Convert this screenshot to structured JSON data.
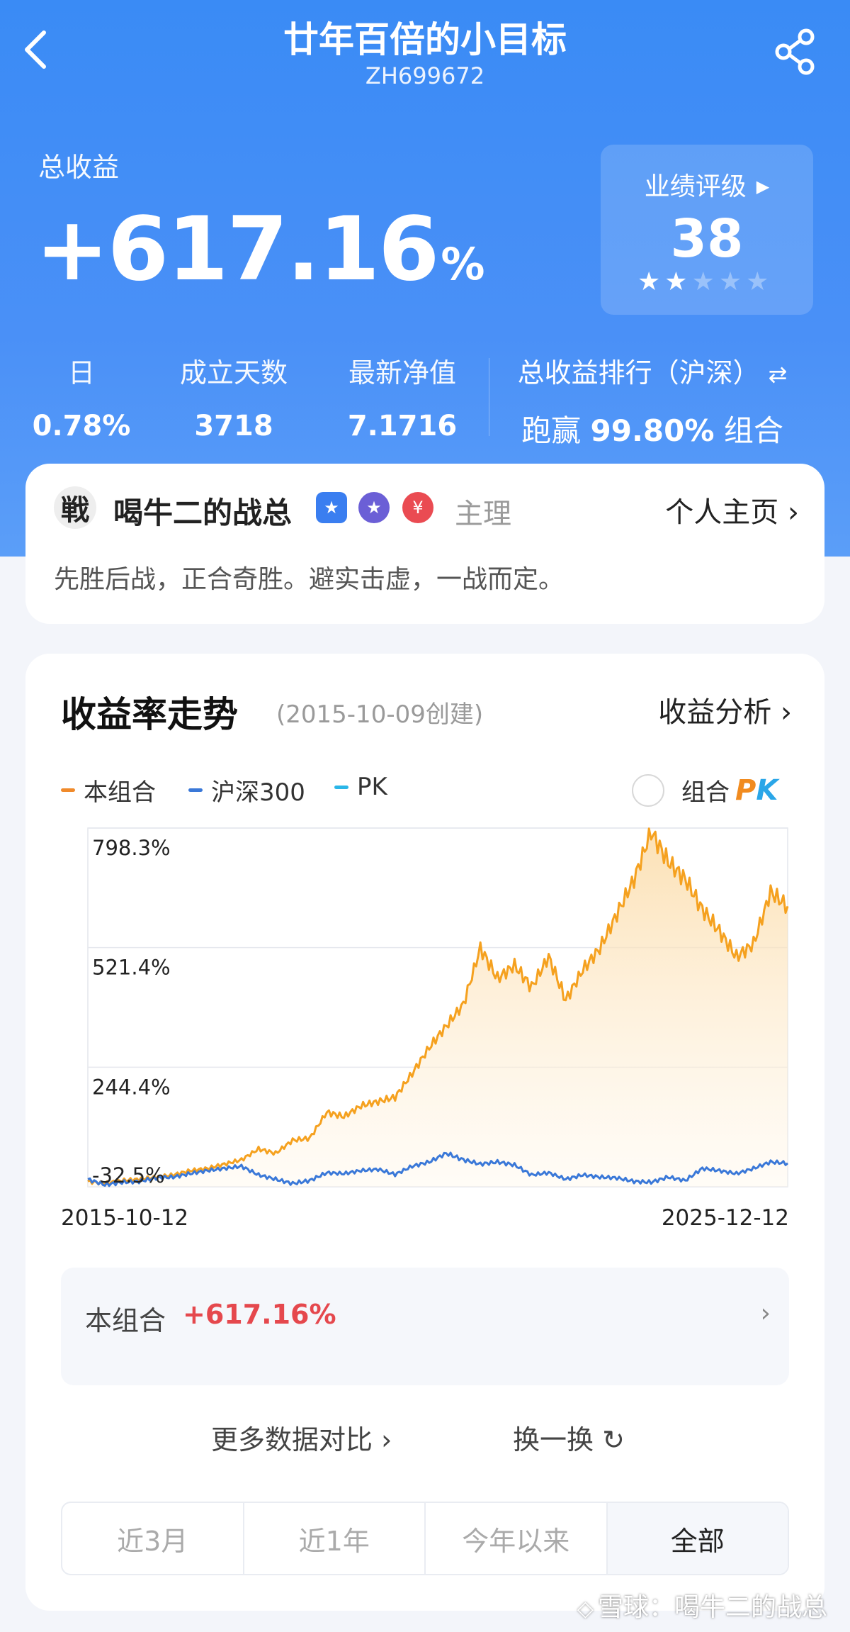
{
  "header": {
    "title": "廿年百倍的小目标",
    "code": "ZH699672",
    "back_icon": "back-chevron-icon",
    "share_icon": "share-icon"
  },
  "summary": {
    "total_label": "总收益",
    "total_value": "+617.16",
    "total_unit": "%"
  },
  "rating": {
    "label": "业绩评级",
    "value": "38",
    "stars_filled": 2,
    "stars_total": 5
  },
  "stats": [
    {
      "label": "日",
      "value": "0.78%"
    },
    {
      "label": "成立天数",
      "value": "3718"
    },
    {
      "label": "最新净值",
      "value": "7.1716"
    }
  ],
  "rank": {
    "label": "总收益排行（沪深）",
    "prefix": "跑赢",
    "value": "99.80%",
    "suffix": "组合"
  },
  "manager": {
    "avatar_char": "戦",
    "name": "喝牛二的战总",
    "role": "主理",
    "homepage": "个人主页 ›",
    "motto": "先胜后战，正合奇胜。避实击虚，一战而定。",
    "badges": [
      "★",
      "★",
      "¥"
    ]
  },
  "chart_section": {
    "title": "收益率走势",
    "created": "(2015-10-09创建)",
    "analysis_link": "收益分析 ›",
    "legend": [
      {
        "name": "本组合",
        "color": "#f08a2b"
      },
      {
        "name": "沪深300",
        "color": "#3a78d8"
      },
      {
        "name": "PK",
        "color": "#2ab6e8"
      }
    ],
    "pk_toggle_label": "组合",
    "pk_p": "P",
    "pk_k": "K"
  },
  "chart_data": {
    "type": "line",
    "x_start": "2015-10-12",
    "x_end": "2025-12-12",
    "yticks": [
      "798.3%",
      "521.4%",
      "244.4%",
      "-32.5%"
    ],
    "ytick_values": [
      798.3,
      521.4,
      244.4,
      -32.5
    ],
    "ylim": [
      -32.5,
      798.3
    ],
    "grid": true,
    "series": [
      {
        "name": "本组合",
        "color": "#f5a11f",
        "fill": true,
        "x": [
          "2015-10",
          "2016-01",
          "2016-04",
          "2016-07",
          "2016-10",
          "2017-01",
          "2017-04",
          "2017-07",
          "2017-10",
          "2018-01",
          "2018-04",
          "2018-07",
          "2018-10",
          "2019-01",
          "2019-04",
          "2019-07",
          "2019-10",
          "2020-01",
          "2020-04",
          "2020-07",
          "2020-10",
          "2021-01",
          "2021-04",
          "2021-07",
          "2021-10",
          "2022-01",
          "2022-04",
          "2022-07",
          "2022-10",
          "2023-01",
          "2023-04",
          "2023-07",
          "2023-10",
          "2024-01",
          "2024-04",
          "2024-07",
          "2024-10",
          "2025-01",
          "2025-04",
          "2025-07",
          "2025-10",
          "2025-12"
        ],
        "values": [
          -20,
          -25,
          -18,
          -15,
          -10,
          -5,
          5,
          10,
          20,
          30,
          55,
          45,
          75,
          80,
          140,
          130,
          155,
          165,
          175,
          230,
          290,
          340,
          390,
          520,
          450,
          480,
          430,
          500,
          400,
          470,
          520,
          600,
          680,
          790,
          720,
          680,
          610,
          560,
          500,
          530,
          650,
          617
        ]
      },
      {
        "name": "沪深300",
        "color": "#3a78d8",
        "fill": false,
        "x": [
          "2015-10",
          "2016-01",
          "2016-04",
          "2016-07",
          "2016-10",
          "2017-01",
          "2017-04",
          "2017-07",
          "2017-10",
          "2018-01",
          "2018-04",
          "2018-07",
          "2018-10",
          "2019-01",
          "2019-04",
          "2019-07",
          "2019-10",
          "2020-01",
          "2020-04",
          "2020-07",
          "2020-10",
          "2021-01",
          "2021-04",
          "2021-07",
          "2021-10",
          "2022-01",
          "2022-04",
          "2022-07",
          "2022-10",
          "2023-01",
          "2023-04",
          "2023-07",
          "2023-10",
          "2024-01",
          "2024-04",
          "2024-07",
          "2024-10",
          "2025-01",
          "2025-04",
          "2025-07",
          "2025-10",
          "2025-12"
        ],
        "values": [
          -15,
          -28,
          -22,
          -20,
          -12,
          -10,
          -2,
          5,
          10,
          15,
          -5,
          -15,
          -25,
          -18,
          0,
          -2,
          5,
          8,
          -4,
          15,
          25,
          45,
          30,
          20,
          25,
          18,
          -5,
          0,
          -15,
          -5,
          -10,
          -12,
          -20,
          -22,
          -10,
          -18,
          10,
          5,
          -2,
          10,
          25,
          22
        ]
      }
    ]
  },
  "combo_row": {
    "label": "本组合",
    "value": "+617.16%",
    "chevron": "›"
  },
  "links": {
    "more": "更多数据对比 ›",
    "swap": "换一换 ↻"
  },
  "range_tabs": [
    {
      "label": "近3月",
      "active": false
    },
    {
      "label": "近1年",
      "active": false
    },
    {
      "label": "今年以来",
      "active": false
    },
    {
      "label": "全部",
      "active": true
    }
  ],
  "watermark": {
    "logo": "◇",
    "text": "雪球：喝牛二的战总"
  }
}
